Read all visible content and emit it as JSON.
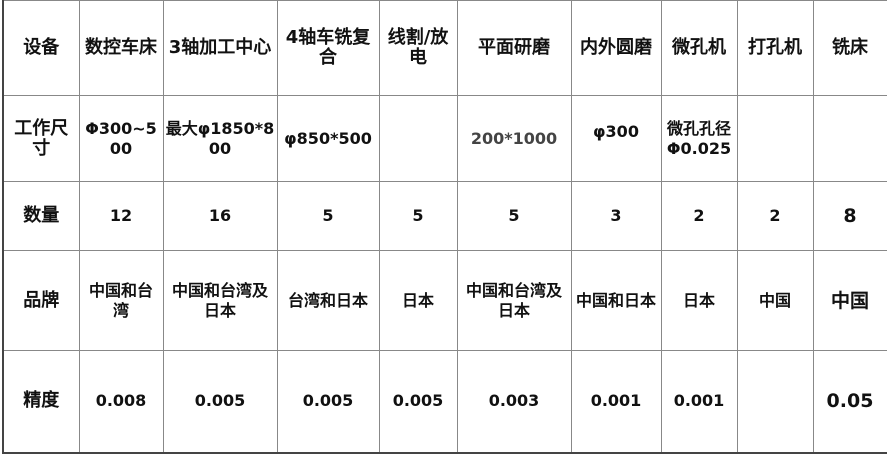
{
  "header": {
    "label": "设备",
    "items": [
      "数控车床",
      "3轴加工中心",
      "4轴车铣复合",
      "线割/放电",
      "平面研磨",
      "内外圆磨",
      "微孔机",
      "打孔机",
      "铣床"
    ]
  },
  "rows": [
    {
      "label": "工作尺寸",
      "cells": [
        "Φ300~500",
        "最大φ1850*800",
        "φ850*500",
        "",
        "200*1000",
        "φ300",
        "微孔孔径Φ0.025",
        "",
        ""
      ]
    },
    {
      "label": "数量",
      "cells": [
        "12",
        "16",
        "5",
        "5",
        "5",
        "3",
        "2",
        "2",
        "8"
      ]
    },
    {
      "label": "品牌",
      "cells": [
        "中国和台湾",
        "中国和台湾及日本",
        "台湾和日本",
        "日本",
        "中国和台湾及日本",
        "中国和日本",
        "日本",
        "中国",
        "中国"
      ]
    },
    {
      "label": "精度",
      "cells": [
        "0.008",
        "0.005",
        "0.005",
        "0.005",
        "0.003",
        "0.001",
        "0.001",
        "",
        "0.05"
      ]
    }
  ]
}
